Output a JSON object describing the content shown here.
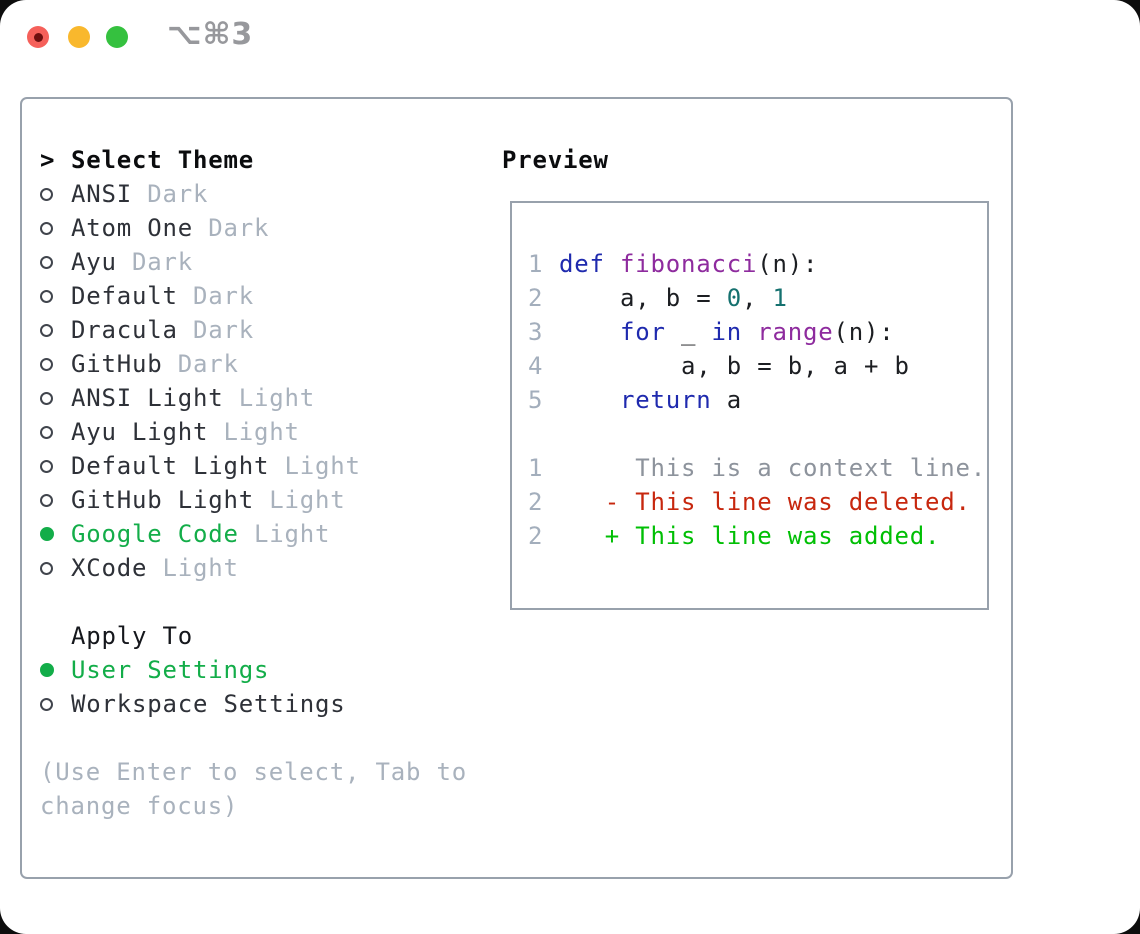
{
  "window": {
    "title_shortcut": "⌥⌘3"
  },
  "colors": {
    "traffic_red": "#f5605a",
    "traffic_red_dot": "#6d0f0f",
    "traffic_yellow": "#f9b82d",
    "traffic_green": "#35c13f",
    "titlebar_text": "#97989c",
    "border_gray": "#98a1ac",
    "text_dark": "#2e3138",
    "text_muted": "#a9b2bd",
    "circle_stroke": "#41454d",
    "accent_green": "#13ad49",
    "line_number": "#a3aebc",
    "code_plain": "#1c1e22",
    "keyword_blue": "#1f2aae",
    "function_purple": "#8e2b9e",
    "number_teal": "#15716f",
    "context_gray": "#8d939c",
    "deleted_red": "#c7270e",
    "added_green": "#00bf04"
  },
  "theme_selector": {
    "prompt": ">",
    "title": "Select Theme",
    "items": [
      {
        "name": "ANSI",
        "variant": "Dark",
        "selected": false
      },
      {
        "name": "Atom One",
        "variant": "Dark",
        "selected": false
      },
      {
        "name": "Ayu",
        "variant": "Dark",
        "selected": false
      },
      {
        "name": "Default",
        "variant": "Dark",
        "selected": false
      },
      {
        "name": "Dracula",
        "variant": "Dark",
        "selected": false
      },
      {
        "name": "GitHub",
        "variant": "Dark",
        "selected": false
      },
      {
        "name": "ANSI Light",
        "variant": "Light",
        "selected": false
      },
      {
        "name": "Ayu Light",
        "variant": "Light",
        "selected": false
      },
      {
        "name": "Default Light",
        "variant": "Light",
        "selected": false
      },
      {
        "name": "GitHub Light",
        "variant": "Light",
        "selected": false
      },
      {
        "name": "Google Code",
        "variant": "Light",
        "selected": true
      },
      {
        "name": "XCode",
        "variant": "Light",
        "selected": false
      }
    ],
    "apply_to": {
      "title": "Apply To",
      "options": [
        {
          "label": "User Settings",
          "selected": true
        },
        {
          "label": "Workspace Settings",
          "selected": false
        }
      ]
    },
    "help_lines": [
      "(Use Enter to select, Tab to",
      "change focus)"
    ]
  },
  "preview": {
    "title": "Preview",
    "lines": [
      {
        "num": "1",
        "tokens": [
          [
            "kw",
            "def"
          ],
          [
            "pl",
            " "
          ],
          [
            "fn",
            "fibonacci"
          ],
          [
            "pl",
            "(n):"
          ]
        ]
      },
      {
        "num": "2",
        "tokens": [
          [
            "pl",
            "    a, b = "
          ],
          [
            "num",
            "0"
          ],
          [
            "pl",
            ", "
          ],
          [
            "num",
            "1"
          ]
        ]
      },
      {
        "num": "3",
        "tokens": [
          [
            "pl",
            "    "
          ],
          [
            "kw",
            "for"
          ],
          [
            "pl",
            " _ "
          ],
          [
            "kw",
            "in"
          ],
          [
            "pl",
            " "
          ],
          [
            "fn",
            "range"
          ],
          [
            "pl",
            "(n):"
          ]
        ]
      },
      {
        "num": "4",
        "tokens": [
          [
            "pl",
            "        a, b = b, a + b"
          ]
        ]
      },
      {
        "num": "5",
        "tokens": [
          [
            "pl",
            "    "
          ],
          [
            "kw",
            "return"
          ],
          [
            "pl",
            " a"
          ]
        ]
      },
      {
        "num": "",
        "tokens": []
      },
      {
        "num": "1",
        "tokens": [
          [
            "ctx",
            "     This is a context line."
          ]
        ]
      },
      {
        "num": "2",
        "tokens": [
          [
            "del",
            "   - This line was deleted."
          ]
        ]
      },
      {
        "num": "2",
        "tokens": [
          [
            "add",
            "   + This line was added."
          ]
        ]
      }
    ]
  }
}
